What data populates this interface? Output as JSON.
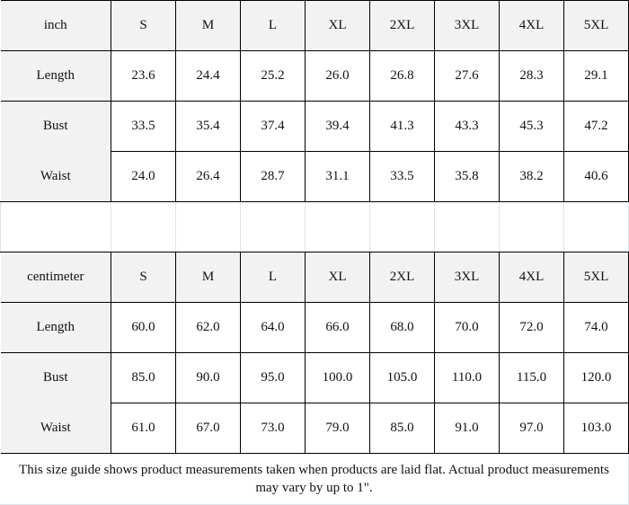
{
  "sizes": [
    "S",
    "M",
    "L",
    "XL",
    "2XL",
    "3XL",
    "4XL",
    "5XL"
  ],
  "inch": {
    "unit": "inch",
    "rows": [
      {
        "label": "Length",
        "values": [
          "23.6",
          "24.4",
          "25.2",
          "26.0",
          "26.8",
          "27.6",
          "28.3",
          "29.1"
        ]
      },
      {
        "label": "Bust",
        "values": [
          "33.5",
          "35.4",
          "37.4",
          "39.4",
          "41.3",
          "43.3",
          "45.3",
          "47.2"
        ]
      },
      {
        "label": "Waist",
        "values": [
          "24.0",
          "26.4",
          "28.7",
          "31.1",
          "33.5",
          "35.8",
          "38.2",
          "40.6"
        ]
      }
    ]
  },
  "centimeter": {
    "unit": "centimeter",
    "rows": [
      {
        "label": "Length",
        "values": [
          "60.0",
          "62.0",
          "64.0",
          "66.0",
          "68.0",
          "70.0",
          "72.0",
          "74.0"
        ]
      },
      {
        "label": "Bust",
        "values": [
          "85.0",
          "90.0",
          "95.0",
          "100.0",
          "105.0",
          "110.0",
          "115.0",
          "120.0"
        ]
      },
      {
        "label": "Waist",
        "values": [
          "61.0",
          "67.0",
          "73.0",
          "79.0",
          "85.0",
          "91.0",
          "97.0",
          "103.0"
        ]
      }
    ]
  },
  "note": "This size guide shows product measurements taken when products are laid flat. Actual product measurements may vary by up to 1\"."
}
